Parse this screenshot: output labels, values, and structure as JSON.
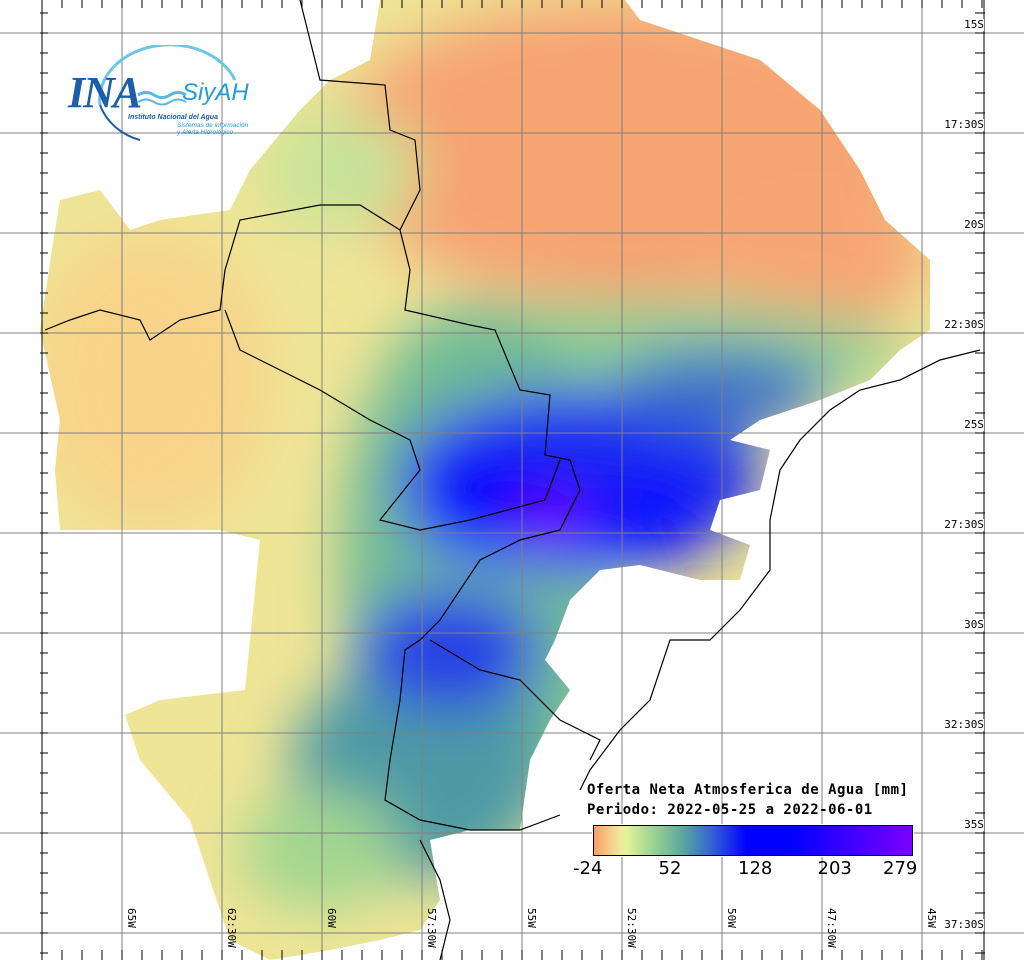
{
  "logo": {
    "acronym": "INA",
    "product": "SiyAH",
    "institution": "Instituto Nacional del Agua",
    "system_line1": "Sistemas de información",
    "system_line2": "y Alerta Hidrológico"
  },
  "legend": {
    "title": "Oferta Neta Atmosferica de Agua [mm]",
    "period": "Periodo: 2022-05-25 a 2022-06-01",
    "ticks": [
      "-24",
      "52",
      "128",
      "203",
      "279"
    ],
    "colors": [
      "#f9a066",
      "#f2e69a",
      "#9fd68f",
      "#5aa7a0",
      "#0000ff",
      "#7a00ff"
    ]
  },
  "axes": {
    "latitudes": [
      "15S",
      "17:30S",
      "20S",
      "22:30S",
      "25S",
      "27:30S",
      "30S",
      "32:30S",
      "35S",
      "37:30S"
    ],
    "longitudes": [
      "65W",
      "62:30W",
      "60W",
      "57:30W",
      "55W",
      "52:30W",
      "50W",
      "47:30W",
      "45W"
    ]
  }
}
